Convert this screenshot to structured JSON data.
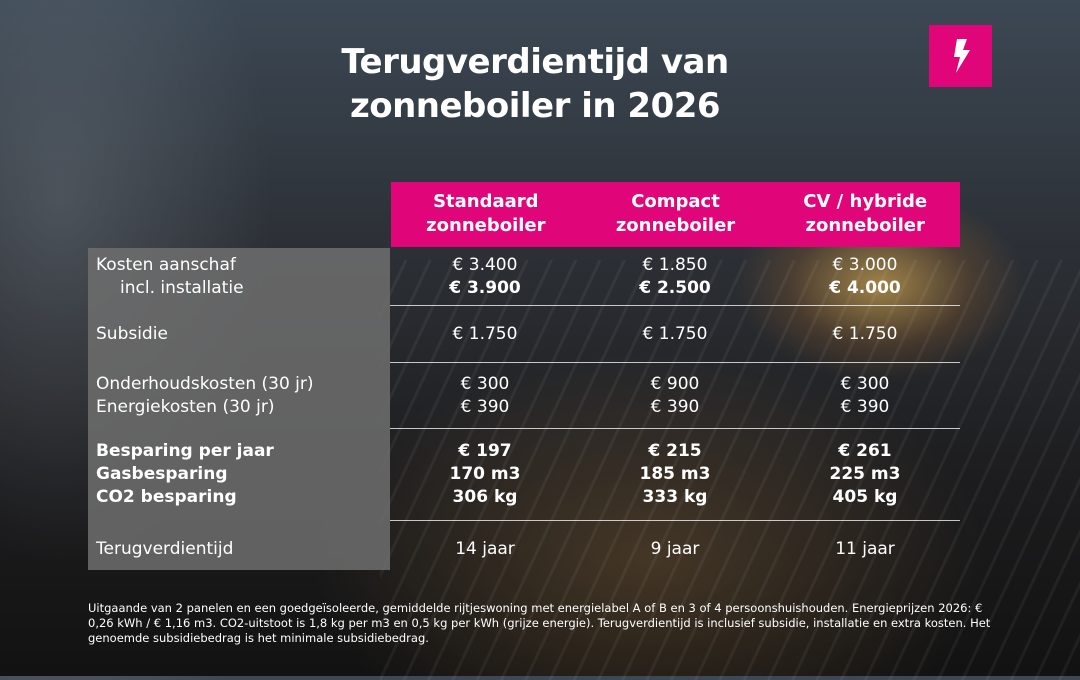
{
  "title": [
    "Terugverdientijd van",
    "zonneboiler in 2026"
  ],
  "logo_icon": "lightning-bolt-icon",
  "colors": {
    "accent": "#e0067a"
  },
  "columns": [
    "Standaard zonneboiler",
    "Compact zonneboiler",
    "CV / hybride zonneboiler"
  ],
  "columns_lines": [
    [
      "Standaard",
      "zonneboiler"
    ],
    [
      "Compact",
      "zonneboiler"
    ],
    [
      "CV / hybride",
      "zonneboiler"
    ]
  ],
  "rows": [
    {
      "labels": [
        "Kosten aanschaf",
        "incl. installatie"
      ],
      "values": [
        [
          "€ 3.400",
          "€ 3.900"
        ],
        [
          "€ 1.850",
          "€ 2.500"
        ],
        [
          "€ 3.000",
          "€ 4.000"
        ]
      ]
    },
    {
      "labels": [
        "Subsidie"
      ],
      "values": [
        [
          "€ 1.750"
        ],
        [
          "€ 1.750"
        ],
        [
          "€ 1.750"
        ]
      ]
    },
    {
      "labels": [
        "Onderhoudskosten (30 jr)",
        "Energiekosten (30 jr)"
      ],
      "values": [
        [
          "€ 300",
          "€ 390"
        ],
        [
          "€ 900",
          "€ 390"
        ],
        [
          "€ 300",
          "€ 390"
        ]
      ]
    },
    {
      "labels": [
        "Besparing per jaar",
        "Gasbesparing",
        "CO2 besparing"
      ],
      "values": [
        [
          "€ 197",
          "170 m3",
          "306 kg"
        ],
        [
          "€ 215",
          "185 m3",
          "333 kg"
        ],
        [
          "€ 261",
          "225 m3",
          "405 kg"
        ]
      ]
    },
    {
      "labels": [
        "Terugverdientijd"
      ],
      "values": [
        [
          "14 jaar"
        ],
        [
          "9 jaar"
        ],
        [
          "11 jaar"
        ]
      ]
    }
  ],
  "footnote": "Uitgaande van 2 panelen en een goedgeïsoleerde, gemiddelde rijtjeswoning met energielabel A of B en 3 of 4 persoonshuishouden. Energieprijzen 2026: € 0,26 kWh / € 1,16 m3. CO2-uitstoot is 1,8 kg per m3 en 0,5 kg per kWh (grijze energie). Terugverdientijd is inclusief subsidie, installatie en extra kosten. Het genoemde subsidiebedrag is het minimale subsidiebedrag."
}
